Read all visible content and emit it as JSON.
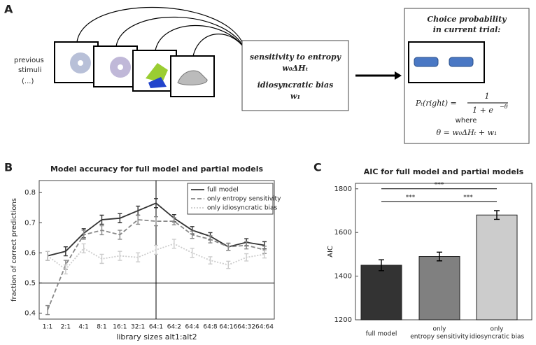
{
  "panels": {
    "a": "A",
    "b": "B",
    "c": "C"
  },
  "diagram": {
    "previous_stimuli": [
      "previous",
      "stimuli",
      "(...)"
    ],
    "model_box": {
      "line1": "sensitivity to entropy",
      "line2": "w₀ΔHₜ",
      "line3": "idiosyncratic bias",
      "line4": "w₁"
    },
    "choice_box": {
      "title1": "Choice probability",
      "title2": "in current trial:",
      "lhs": "Pₜ(right) =",
      "numerator": "1",
      "denominator": "1 + e",
      "exponent": "−θ",
      "where": "where",
      "theta": "θ =  w₀ΔHₜ + w₁"
    }
  },
  "chart_data": [
    {
      "type": "line",
      "title": "Model accuracy for full model and partial models",
      "xlabel": "library sizes alt1:alt2",
      "ylabel": "fraction of correct predictions",
      "categories": [
        "1:1",
        "2:1",
        "4:1",
        "8:1",
        "16:1",
        "32:1",
        "64:1",
        "64:2",
        "64:4",
        "64:8",
        "64:16",
        "64:32",
        "64:64"
      ],
      "ylim": [
        0.38,
        0.84
      ],
      "yticks": [
        0.4,
        0.5,
        0.6,
        0.7,
        0.8
      ],
      "hline": 0.5,
      "vline": "64:1",
      "legend": "upper right",
      "series": [
        {
          "name": "full model",
          "color": "#333333",
          "dash": "solid",
          "values": [
            0.59,
            0.605,
            0.665,
            0.71,
            0.715,
            0.74,
            0.765,
            0.715,
            0.675,
            0.655,
            0.62,
            0.635,
            0.625
          ],
          "errors": [
            0.015,
            0.015,
            0.015,
            0.015,
            0.015,
            0.015,
            0.015,
            0.012,
            0.012,
            0.012,
            0.012,
            0.012,
            0.012
          ]
        },
        {
          "name": "only entropy sensitivity",
          "color": "#888888",
          "dash": "dashed",
          "values": [
            0.41,
            0.56,
            0.66,
            0.675,
            0.66,
            0.71,
            0.705,
            0.705,
            0.66,
            0.645,
            0.62,
            0.625,
            0.61
          ],
          "errors": [
            0.015,
            0.015,
            0.015,
            0.015,
            0.015,
            0.015,
            0.015,
            0.012,
            0.012,
            0.012,
            0.012,
            0.012,
            0.012
          ]
        },
        {
          "name": "only idiosyncratic bias",
          "color": "#cccccc",
          "dash": "dotted",
          "values": [
            0.59,
            0.545,
            0.615,
            0.58,
            0.59,
            0.585,
            0.61,
            0.63,
            0.6,
            0.575,
            0.56,
            0.585,
            0.595
          ],
          "errors": [
            0.015,
            0.015,
            0.015,
            0.015,
            0.015,
            0.015,
            0.015,
            0.015,
            0.015,
            0.012,
            0.012,
            0.012,
            0.012
          ]
        }
      ]
    },
    {
      "type": "bar",
      "title": "AIC for full model and partial models",
      "ylabel": "AIC",
      "categories": [
        [
          "full model"
        ],
        [
          "only",
          "entropy sensitivity"
        ],
        [
          "only",
          "idiosyncratic bias"
        ]
      ],
      "ylim": [
        1200,
        1825
      ],
      "yticks": [
        1200,
        1400,
        1600,
        1800
      ],
      "values": [
        1450,
        1490,
        1680
      ],
      "errors": [
        25,
        20,
        20
      ],
      "colors": [
        "#333333",
        "#808080",
        "#cccccc"
      ],
      "significance": [
        {
          "pair": [
            0,
            2
          ],
          "y": 1800,
          "label": "***"
        },
        {
          "pair": [
            0,
            1
          ],
          "y": 1742,
          "label": "***"
        },
        {
          "pair": [
            1,
            2
          ],
          "y": 1742,
          "label": "***"
        }
      ]
    }
  ]
}
